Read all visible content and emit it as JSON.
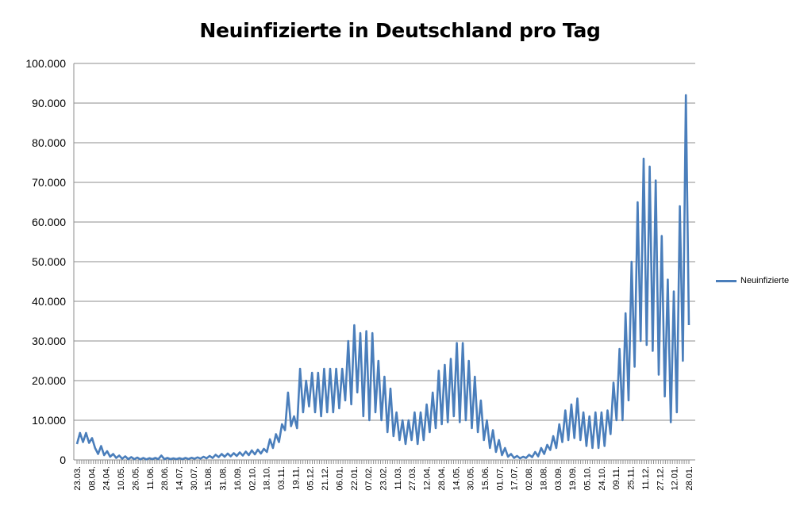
{
  "chart_data": {
    "type": "line",
    "title": "Neuinfizierte in Deutschland pro Tag",
    "xlabel": "",
    "ylabel": "",
    "ylim": [
      0,
      100000
    ],
    "y_ticks": [
      "0",
      "10.000",
      "20.000",
      "30.000",
      "40.000",
      "50.000",
      "60.000",
      "70.000",
      "80.000",
      "90.000",
      "100.000"
    ],
    "x_ticks": [
      "23.03.",
      "08.04.",
      "24.04.",
      "10.05.",
      "26.05.",
      "11.06.",
      "28.06.",
      "14.07.",
      "30.07.",
      "15.08.",
      "31.08.",
      "16.09.",
      "02.10.",
      "18.10.",
      "03.11.",
      "19.11.",
      "05.12.",
      "21.12.",
      "06.01.",
      "22.01.",
      "07.02.",
      "23.02.",
      "11.03.",
      "27.03.",
      "12.04.",
      "28.04.",
      "14.05.",
      "30.05.",
      "15.06.",
      "01.07.",
      "17.07.",
      "02.08.",
      "18.08.",
      "03.09.",
      "19.09.",
      "05.10.",
      "24.10.",
      "09.11.",
      "25.11.",
      "11.12.",
      "27.12.",
      "12.01.",
      "28.01."
    ],
    "grid": true,
    "legend_position": "right",
    "series": [
      {
        "name": "Neuinfizierte",
        "color": "#4a7ebb",
        "points": [
          [
            0,
            4000
          ],
          [
            1,
            6800
          ],
          [
            2,
            4500
          ],
          [
            3,
            6800
          ],
          [
            4,
            4300
          ],
          [
            5,
            5500
          ],
          [
            6,
            3000
          ],
          [
            7,
            1500
          ],
          [
            8,
            3500
          ],
          [
            9,
            1200
          ],
          [
            10,
            2200
          ],
          [
            11,
            800
          ],
          [
            12,
            1500
          ],
          [
            13,
            500
          ],
          [
            14,
            1100
          ],
          [
            15,
            300
          ],
          [
            16,
            900
          ],
          [
            17,
            200
          ],
          [
            18,
            700
          ],
          [
            19,
            200
          ],
          [
            20,
            600
          ],
          [
            21,
            150
          ],
          [
            22,
            500
          ],
          [
            23,
            150
          ],
          [
            24,
            450
          ],
          [
            25,
            200
          ],
          [
            26,
            500
          ],
          [
            27,
            200
          ],
          [
            28,
            1100
          ],
          [
            29,
            200
          ],
          [
            30,
            500
          ],
          [
            31,
            200
          ],
          [
            32,
            400
          ],
          [
            33,
            200
          ],
          [
            34,
            450
          ],
          [
            35,
            200
          ],
          [
            36,
            500
          ],
          [
            37,
            250
          ],
          [
            38,
            550
          ],
          [
            39,
            300
          ],
          [
            40,
            650
          ],
          [
            41,
            350
          ],
          [
            42,
            800
          ],
          [
            43,
            400
          ],
          [
            44,
            1000
          ],
          [
            45,
            500
          ],
          [
            46,
            1300
          ],
          [
            47,
            700
          ],
          [
            48,
            1500
          ],
          [
            49,
            800
          ],
          [
            50,
            1600
          ],
          [
            51,
            900
          ],
          [
            52,
            1700
          ],
          [
            53,
            1000
          ],
          [
            54,
            1900
          ],
          [
            55,
            1100
          ],
          [
            56,
            2100
          ],
          [
            57,
            1200
          ],
          [
            58,
            2400
          ],
          [
            59,
            1400
          ],
          [
            60,
            2600
          ],
          [
            61,
            1600
          ],
          [
            62,
            2800
          ],
          [
            63,
            2000
          ],
          [
            64,
            5200
          ],
          [
            65,
            3000
          ],
          [
            66,
            6500
          ],
          [
            67,
            4500
          ],
          [
            68,
            9000
          ],
          [
            69,
            7500
          ],
          [
            70,
            17000
          ],
          [
            71,
            8500
          ],
          [
            72,
            11000
          ],
          [
            73,
            8000
          ],
          [
            74,
            23000
          ],
          [
            75,
            12000
          ],
          [
            76,
            20000
          ],
          [
            77,
            13500
          ],
          [
            78,
            22000
          ],
          [
            79,
            12000
          ],
          [
            80,
            22000
          ],
          [
            81,
            11000
          ],
          [
            82,
            23000
          ],
          [
            83,
            12000
          ],
          [
            84,
            23000
          ],
          [
            85,
            12000
          ],
          [
            86,
            23000
          ],
          [
            87,
            13000
          ],
          [
            88,
            23000
          ],
          [
            89,
            15000
          ],
          [
            90,
            30000
          ],
          [
            91,
            14000
          ],
          [
            92,
            34000
          ],
          [
            93,
            17000
          ],
          [
            94,
            32000
          ],
          [
            95,
            11000
          ],
          [
            96,
            32500
          ],
          [
            97,
            10000
          ],
          [
            98,
            32000
          ],
          [
            99,
            12000
          ],
          [
            100,
            25000
          ],
          [
            101,
            10000
          ],
          [
            102,
            21000
          ],
          [
            103,
            7000
          ],
          [
            104,
            18000
          ],
          [
            105,
            6000
          ],
          [
            106,
            12000
          ],
          [
            107,
            5000
          ],
          [
            108,
            10000
          ],
          [
            109,
            4000
          ],
          [
            110,
            10000
          ],
          [
            111,
            5000
          ],
          [
            112,
            12000
          ],
          [
            113,
            4000
          ],
          [
            114,
            12000
          ],
          [
            115,
            5000
          ],
          [
            116,
            14000
          ],
          [
            117,
            7000
          ],
          [
            118,
            17000
          ],
          [
            119,
            8000
          ],
          [
            120,
            22500
          ],
          [
            121,
            9000
          ],
          [
            122,
            24000
          ],
          [
            123,
            9500
          ],
          [
            124,
            25500
          ],
          [
            125,
            11000
          ],
          [
            126,
            29500
          ],
          [
            127,
            9500
          ],
          [
            128,
            29500
          ],
          [
            129,
            10000
          ],
          [
            130,
            25000
          ],
          [
            131,
            8000
          ],
          [
            132,
            21000
          ],
          [
            133,
            7000
          ],
          [
            134,
            15000
          ],
          [
            135,
            5000
          ],
          [
            136,
            10000
          ],
          [
            137,
            3000
          ],
          [
            138,
            7500
          ],
          [
            139,
            2000
          ],
          [
            140,
            5000
          ],
          [
            141,
            1200
          ],
          [
            142,
            3000
          ],
          [
            143,
            800
          ],
          [
            144,
            1500
          ],
          [
            145,
            500
          ],
          [
            146,
            1000
          ],
          [
            147,
            400
          ],
          [
            148,
            800
          ],
          [
            149,
            500
          ],
          [
            150,
            1300
          ],
          [
            151,
            700
          ],
          [
            152,
            2000
          ],
          [
            153,
            900
          ],
          [
            154,
            3000
          ],
          [
            155,
            1500
          ],
          [
            156,
            3800
          ],
          [
            157,
            2500
          ],
          [
            158,
            6000
          ],
          [
            159,
            3000
          ],
          [
            160,
            9000
          ],
          [
            161,
            4500
          ],
          [
            162,
            12500
          ],
          [
            163,
            5000
          ],
          [
            164,
            14000
          ],
          [
            165,
            5500
          ],
          [
            166,
            15500
          ],
          [
            167,
            5000
          ],
          [
            168,
            12000
          ],
          [
            169,
            3500
          ],
          [
            170,
            11000
          ],
          [
            171,
            3000
          ],
          [
            172,
            12000
          ],
          [
            173,
            3000
          ],
          [
            174,
            12000
          ],
          [
            175,
            3500
          ],
          [
            176,
            12500
          ],
          [
            177,
            6500
          ],
          [
            178,
            19500
          ],
          [
            179,
            10000
          ],
          [
            180,
            28000
          ],
          [
            181,
            10000
          ],
          [
            182,
            37000
          ],
          [
            183,
            15000
          ],
          [
            184,
            50000
          ],
          [
            185,
            23500
          ],
          [
            186,
            65000
          ],
          [
            187,
            30000
          ],
          [
            188,
            76000
          ],
          [
            189,
            29000
          ],
          [
            190,
            74000
          ],
          [
            191,
            27500
          ],
          [
            192,
            70500
          ],
          [
            193,
            21500
          ],
          [
            194,
            56500
          ],
          [
            195,
            16000
          ],
          [
            196,
            45500
          ],
          [
            197,
            9500
          ],
          [
            198,
            42500
          ],
          [
            199,
            12000
          ],
          [
            200,
            64000
          ],
          [
            201,
            25000
          ],
          [
            202,
            92000
          ],
          [
            203,
            34000
          ]
        ]
      }
    ]
  },
  "legend": {
    "label": "Neuinfizierte"
  }
}
